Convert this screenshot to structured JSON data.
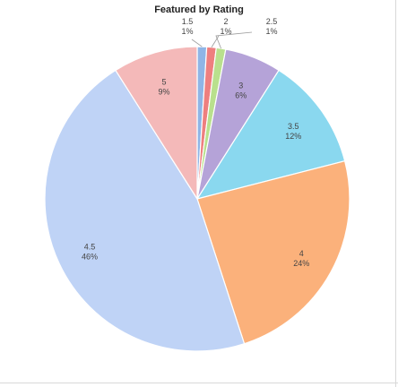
{
  "chart_data": {
    "type": "pie",
    "title": "Featured by Rating",
    "categories": [
      "1.5",
      "2",
      "2.5",
      "3",
      "3.5",
      "4",
      "4.5",
      "5"
    ],
    "values": [
      1,
      1,
      1,
      6,
      12,
      24,
      46,
      9
    ],
    "value_labels": [
      "1%",
      "1%",
      "1%",
      "6%",
      "12%",
      "24%",
      "46%",
      "9%"
    ],
    "colors": [
      "#8fb5e6",
      "#ee7f7f",
      "#b9e08d",
      "#b5a3d8",
      "#8ad8ef",
      "#fbb17b",
      "#bfd3f6",
      "#f4b9b9"
    ],
    "start_angle_deg": -90,
    "direction": "clockwise",
    "legend": "none"
  }
}
